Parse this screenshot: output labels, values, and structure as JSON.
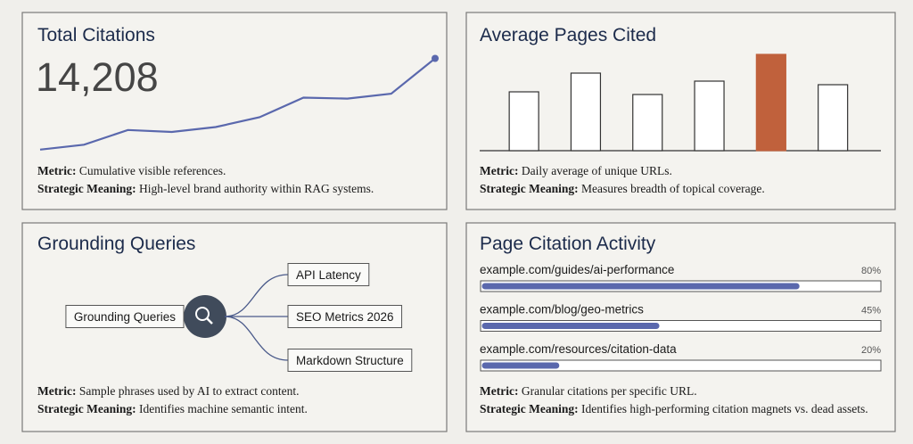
{
  "chart_data": [
    {
      "type": "line",
      "title": "Total Citations",
      "headline": "14,208",
      "values": [
        2,
        7,
        22,
        20,
        25,
        35,
        55,
        54,
        59,
        95
      ],
      "color": "#5a68ad",
      "ylim": [
        0,
        100
      ],
      "notes": [
        {
          "label": "Metric:",
          "text": "Cumulative visible references."
        },
        {
          "label": "Strategic Meaning:",
          "text": "High-level brand authority within RAG systems."
        }
      ]
    },
    {
      "type": "bar",
      "title": "Average Pages Cited",
      "values": [
        66,
        87,
        63,
        78,
        108,
        74
      ],
      "colors": [
        "#ffffff",
        "#ffffff",
        "#ffffff",
        "#ffffff",
        "#c0613c",
        "#ffffff"
      ],
      "ylim": [
        0,
        110
      ],
      "notes": [
        {
          "label": "Metric:",
          "text": "Daily average of unique URLs."
        },
        {
          "label": "Strategic Meaning:",
          "text": "Measures breadth of topical coverage."
        }
      ]
    },
    {
      "type": "progress",
      "title": "Page Citation Activity",
      "categories": [
        "example.com/guides/ai-performance",
        "example.com/blog/geo-metrics",
        "example.com/resources/citation-data"
      ],
      "values": [
        80,
        45,
        20
      ],
      "value_labels": [
        "80%",
        "45%",
        "20%"
      ],
      "color": "#5a68ad",
      "xlim": [
        0,
        100
      ],
      "notes": [
        {
          "label": "Metric:",
          "text": "Granular citations per specific URL."
        },
        {
          "label": "Strategic Meaning:",
          "text": "Identifies high-performing citation magnets vs. dead assets."
        }
      ]
    }
  ],
  "diagram": {
    "title": "Grounding Queries",
    "center": "Grounding Queries",
    "nodes": [
      "API Latency",
      "SEO Metrics 2026",
      "Markdown Structure"
    ],
    "notes": [
      {
        "label": "Metric:",
        "text": "Sample phrases used by AI to extract content."
      },
      {
        "label": "Strategic Meaning:",
        "text": "Identifies machine semantic intent."
      }
    ]
  }
}
